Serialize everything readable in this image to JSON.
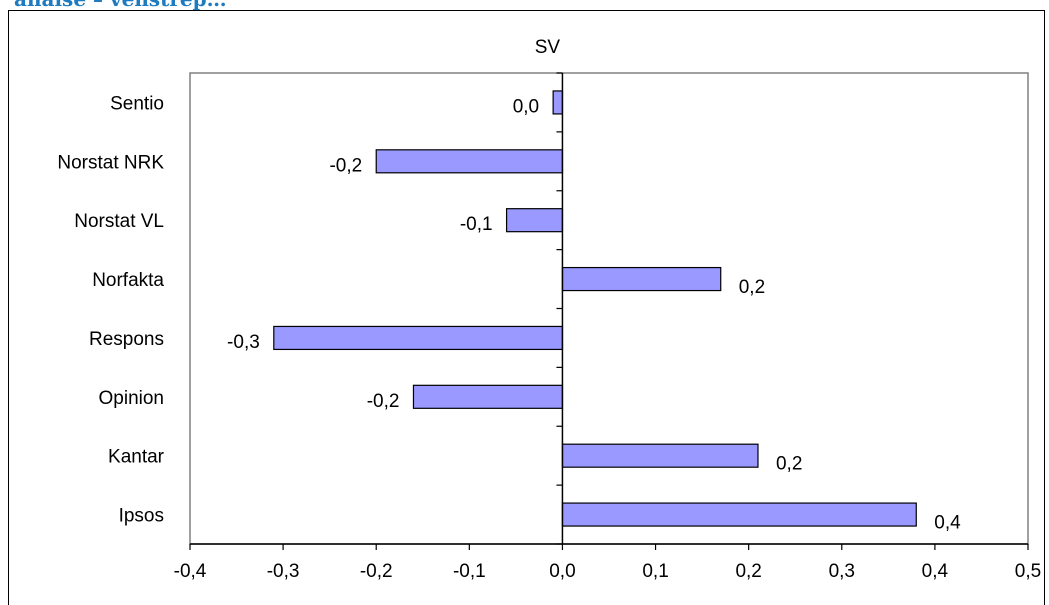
{
  "header": {
    "text": "analse – venstrep…"
  },
  "chart_data": {
    "type": "bar",
    "orientation": "horizontal",
    "title": "SV",
    "categories": [
      "Sentio",
      "Norstat NRK",
      "Norstat VL",
      "Norfakta",
      "Respons",
      "Opinion",
      "Kantar",
      "Ipsos"
    ],
    "values": [
      -0.01,
      -0.2,
      -0.06,
      0.17,
      -0.31,
      -0.16,
      0.21,
      0.38
    ],
    "data_labels": [
      "0,0",
      "-0,2",
      "-0,1",
      "0,2",
      "-0,3",
      "-0,2",
      "0,2",
      "0,4"
    ],
    "xlim": [
      -0.4,
      0.5
    ],
    "xticks": [
      -0.4,
      -0.3,
      -0.2,
      -0.1,
      0.0,
      0.1,
      0.2,
      0.3,
      0.4,
      0.5
    ],
    "xtick_labels": [
      "-0,4",
      "-0,3",
      "-0,2",
      "-0,1",
      "0,0",
      "0,1",
      "0,2",
      "0,3",
      "0,4",
      "0,5"
    ],
    "xlabel": "",
    "ylabel": "",
    "grid": false,
    "bar_color": "#9999ff",
    "bar_edge_color": "#000000"
  }
}
